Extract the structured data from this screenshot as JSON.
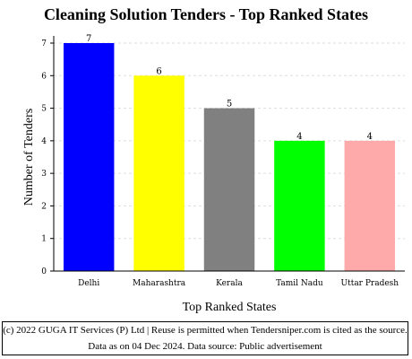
{
  "chart_data": {
    "type": "bar",
    "title": "Cleaning Solution Tenders - Top Ranked States",
    "xlabel": "Top Ranked States",
    "ylabel": "Number of Tenders",
    "categories": [
      "Delhi",
      "Maharashtra",
      "Kerala",
      "Tamil Nadu",
      "Uttar Pradesh"
    ],
    "values": [
      7,
      6,
      5,
      4,
      4
    ],
    "data_labels": [
      "7",
      "6",
      "5",
      "4",
      "4"
    ],
    "colors": [
      "#0000ff",
      "#ffff00",
      "#808080",
      "#00ff00",
      "#ffaaaa"
    ],
    "ylim": [
      0,
      7
    ],
    "yticks": [
      "0",
      "1",
      "2",
      "3",
      "4",
      "5",
      "6",
      "7"
    ],
    "grid": true,
    "legend": "none"
  },
  "footer": {
    "text": "(c) 2022 GUGA IT Services (P) Ltd | Reuse is permitted when Tendersniper.com is cited as the source. Data as on 04 Dec 2024. Data source: Public advertisement"
  }
}
